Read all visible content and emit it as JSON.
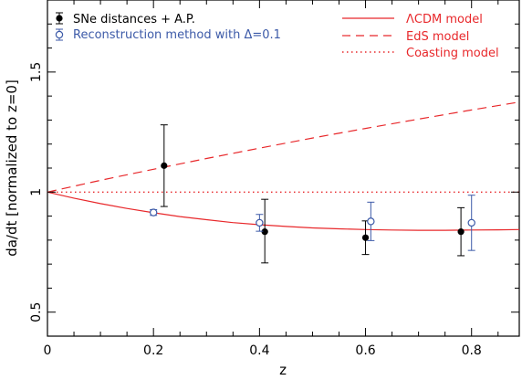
{
  "chart_data": {
    "type": "scatter",
    "xlabel": "z",
    "ylabel": "da/dt [normalized to z=0]",
    "xlim": [
      0,
      0.89
    ],
    "ylim": [
      0.4,
      1.8
    ],
    "xticks": [
      {
        "value": 0,
        "label": "0"
      },
      {
        "value": 0.2,
        "label": "0.2"
      },
      {
        "value": 0.4,
        "label": "0.4"
      },
      {
        "value": 0.6,
        "label": "0.6"
      },
      {
        "value": 0.8,
        "label": "0.8"
      }
    ],
    "yticks": [
      {
        "value": 0.5,
        "label": "0.5"
      },
      {
        "value": 1.0,
        "label": "1"
      },
      {
        "value": 1.5,
        "label": "1.5"
      }
    ],
    "grid": false,
    "legend_placement": "top",
    "series": [
      {
        "name": "SNe distances + A.P.",
        "kind": "points",
        "marker": "filled-circle",
        "color": "#000000",
        "points": [
          {
            "x": 0.22,
            "y": 1.11,
            "yerr_low": 0.17,
            "yerr_high": 0.17
          },
          {
            "x": 0.41,
            "y": 0.835,
            "yerr_low": 0.13,
            "yerr_high": 0.135
          },
          {
            "x": 0.6,
            "y": 0.81,
            "yerr_low": 0.07,
            "yerr_high": 0.07
          },
          {
            "x": 0.78,
            "y": 0.835,
            "yerr_low": 0.1,
            "yerr_high": 0.1
          }
        ]
      },
      {
        "name": "Reconstruction method with Δ=0.1",
        "kind": "points",
        "marker": "open-circle",
        "color": "#3c5aa8",
        "points": [
          {
            "x": 0.2,
            "y": 0.915,
            "yerr_low": 0.012,
            "yerr_high": 0.012
          },
          {
            "x": 0.4,
            "y": 0.872,
            "yerr_low": 0.035,
            "yerr_high": 0.035
          },
          {
            "x": 0.61,
            "y": 0.878,
            "yerr_low": 0.08,
            "yerr_high": 0.08
          },
          {
            "x": 0.8,
            "y": 0.872,
            "yerr_low": 0.115,
            "yerr_high": 0.115
          }
        ]
      },
      {
        "name": "ΛCDM model",
        "kind": "line",
        "style": "solid",
        "color": "#e8282b",
        "x": [
          0,
          0.05,
          0.1,
          0.15,
          0.2,
          0.25,
          0.3,
          0.35,
          0.4,
          0.45,
          0.5,
          0.55,
          0.6,
          0.65,
          0.7,
          0.75,
          0.8,
          0.85,
          0.89
        ],
        "y": [
          1.0,
          0.975,
          0.952,
          0.932,
          0.914,
          0.898,
          0.885,
          0.873,
          0.864,
          0.857,
          0.851,
          0.847,
          0.844,
          0.842,
          0.841,
          0.841,
          0.842,
          0.843,
          0.844
        ]
      },
      {
        "name": "EdS model",
        "kind": "line",
        "style": "dashed",
        "color": "#e8282b",
        "x": [
          0,
          0.1,
          0.2,
          0.3,
          0.4,
          0.5,
          0.6,
          0.7,
          0.8,
          0.89
        ],
        "y": [
          1.0,
          1.049,
          1.095,
          1.14,
          1.183,
          1.225,
          1.265,
          1.304,
          1.342,
          1.375
        ]
      },
      {
        "name": "Coasting model",
        "kind": "line",
        "style": "dotted",
        "color": "#e8282b",
        "x": [
          0,
          0.89
        ],
        "y": [
          1.0,
          1.0
        ]
      }
    ]
  }
}
